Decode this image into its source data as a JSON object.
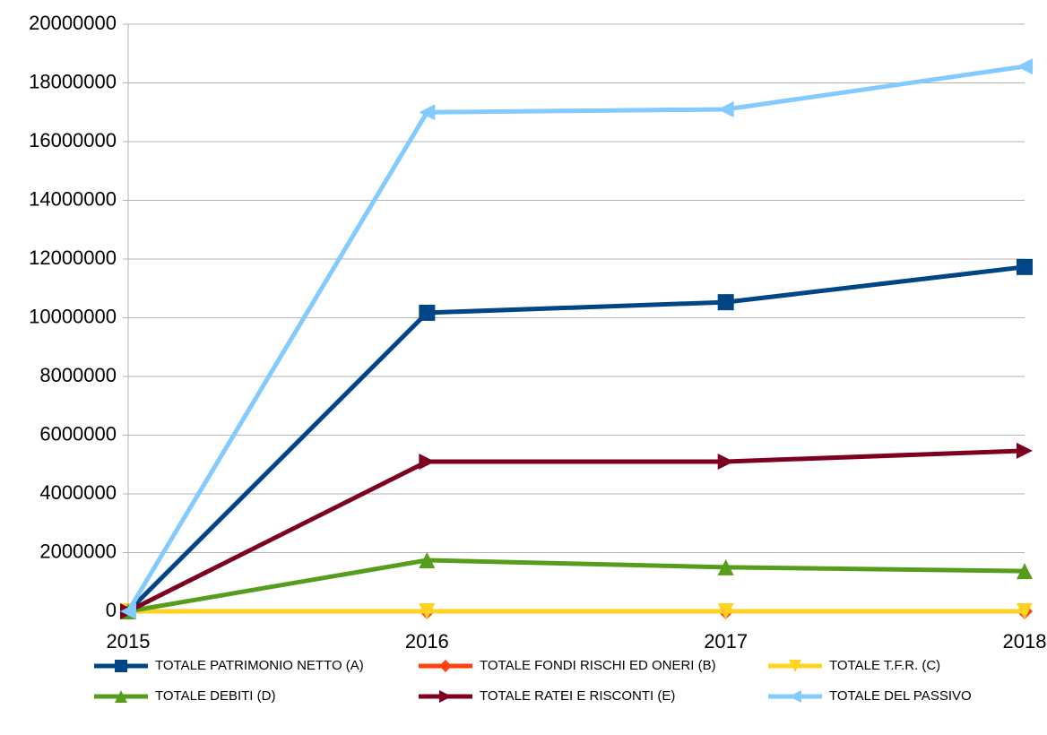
{
  "chart_data": {
    "type": "line",
    "categories": [
      "2015",
      "2016",
      "2017",
      "2018"
    ],
    "series": [
      {
        "name": "TOTALE PATRIMONIO NETTO (A)",
        "color": "#004586",
        "marker": "square",
        "values": [
          0,
          10170000,
          10530000,
          11730000
        ]
      },
      {
        "name": "TOTALE FONDI RISCHI ED ONERI (B)",
        "color": "#ff420e",
        "marker": "diamond",
        "values": [
          0,
          0,
          0,
          0
        ]
      },
      {
        "name": "TOTALE T.F.R. (C)",
        "color": "#ffd320",
        "marker": "triangle-down",
        "values": [
          0,
          0,
          0,
          0
        ]
      },
      {
        "name": "TOTALE DEBITI (D)",
        "color": "#579d1c",
        "marker": "triangle-up",
        "values": [
          0,
          1740000,
          1500000,
          1370000
        ]
      },
      {
        "name": "TOTALE RATEI E RISCONTI (E)",
        "color": "#7e0021",
        "marker": "triangle-right",
        "values": [
          0,
          5100000,
          5100000,
          5470000
        ]
      },
      {
        "name": "TOTALE DEL PASSIVO",
        "color": "#83caff",
        "marker": "triangle-left",
        "values": [
          0,
          17000000,
          17100000,
          18560000
        ]
      }
    ],
    "ylim": [
      0,
      20000000
    ],
    "yticks": [
      0,
      2000000,
      4000000,
      6000000,
      8000000,
      10000000,
      12000000,
      14000000,
      16000000,
      18000000,
      20000000
    ],
    "grid": true,
    "legend": "bottom"
  }
}
